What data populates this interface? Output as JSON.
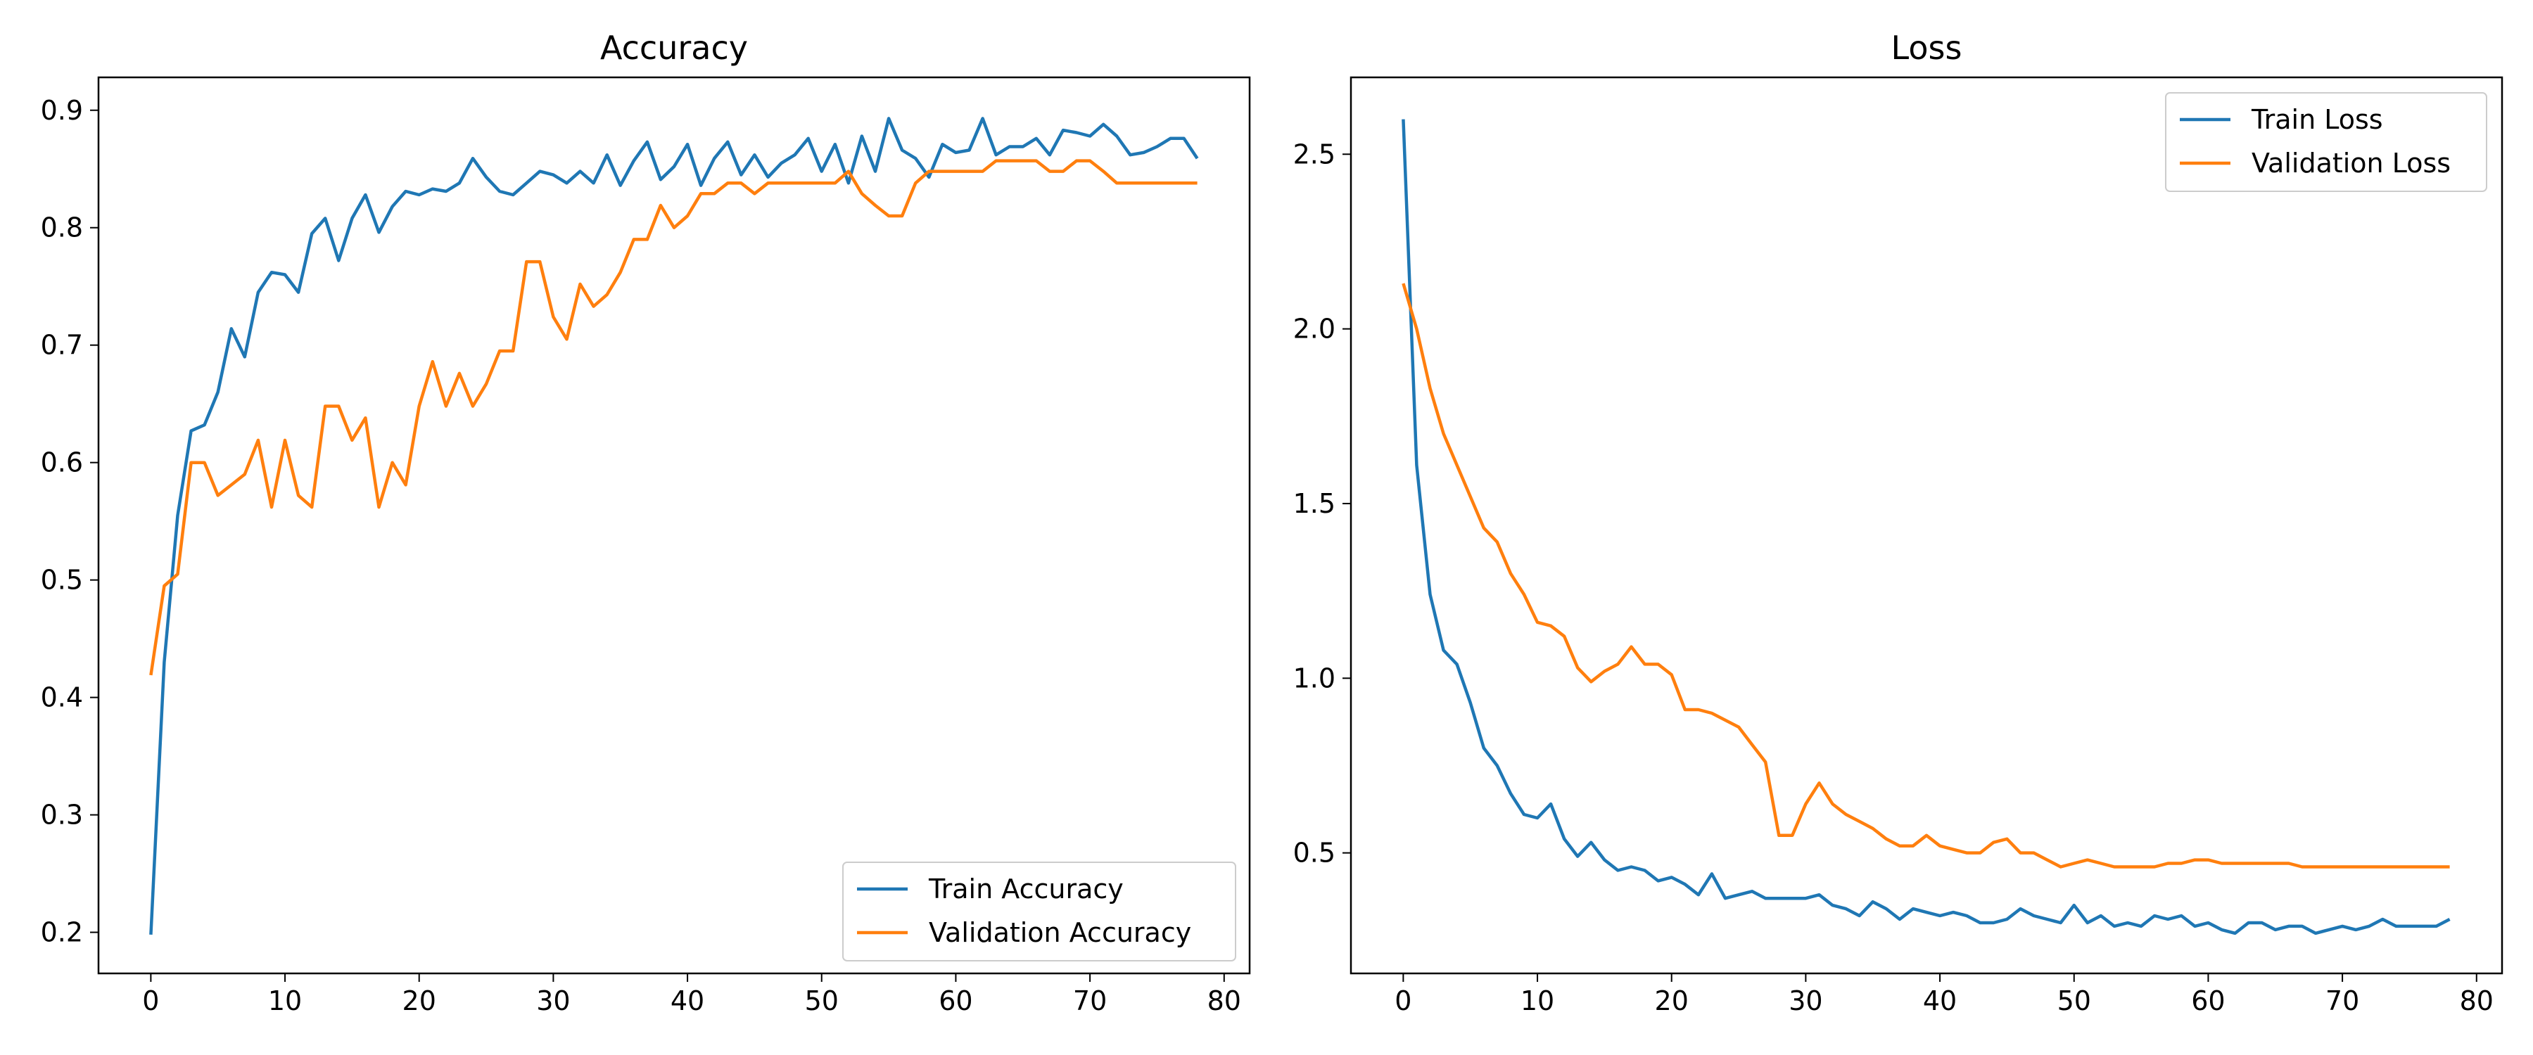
{
  "chart_data": [
    {
      "type": "line",
      "title": "Accuracy",
      "xlabel": "",
      "ylabel": "",
      "xlim": [
        -3.9,
        81.9
      ],
      "ylim": [
        0.165,
        0.928
      ],
      "xticks": [
        0,
        10,
        20,
        30,
        40,
        50,
        60,
        70,
        80
      ],
      "yticks": [
        0.2,
        0.3,
        0.4,
        0.5,
        0.6,
        0.7,
        0.8,
        0.9
      ],
      "grid": false,
      "legend_position": "lower right",
      "series": [
        {
          "name": "Train Accuracy",
          "color": "#1f77b4",
          "values": [
            0.198,
            0.43,
            0.555,
            0.627,
            0.632,
            0.66,
            0.714,
            0.69,
            0.745,
            0.762,
            0.76,
            0.745,
            0.795,
            0.808,
            0.772,
            0.808,
            0.828,
            0.796,
            0.818,
            0.831,
            0.828,
            0.833,
            0.831,
            0.838,
            0.859,
            0.843,
            0.831,
            0.828,
            0.838,
            0.848,
            0.845,
            0.838,
            0.848,
            0.838,
            0.862,
            0.836,
            0.857,
            0.873,
            0.841,
            0.852,
            0.871,
            0.836,
            0.859,
            0.873,
            0.845,
            0.862,
            0.843,
            0.855,
            0.862,
            0.876,
            0.848,
            0.871,
            0.838,
            0.878,
            0.848,
            0.893,
            0.866,
            0.859,
            0.843,
            0.871,
            0.864,
            0.866,
            0.893,
            0.862,
            0.869,
            0.869,
            0.876,
            0.862,
            0.883,
            0.881,
            0.878,
            0.888,
            0.878,
            0.862,
            0.864,
            0.869,
            0.876,
            0.876,
            0.859
          ]
        },
        {
          "name": "Validation Accuracy",
          "color": "#ff7f0e",
          "values": [
            0.419,
            0.495,
            0.505,
            0.6,
            0.6,
            0.572,
            0.581,
            0.59,
            0.619,
            0.562,
            0.619,
            0.572,
            0.562,
            0.648,
            0.648,
            0.619,
            0.638,
            0.562,
            0.6,
            0.581,
            0.648,
            0.686,
            0.648,
            0.676,
            0.648,
            0.667,
            0.695,
            0.695,
            0.771,
            0.771,
            0.724,
            0.705,
            0.752,
            0.733,
            0.743,
            0.762,
            0.79,
            0.79,
            0.819,
            0.8,
            0.81,
            0.829,
            0.829,
            0.838,
            0.838,
            0.829,
            0.838,
            0.838,
            0.838,
            0.838,
            0.838,
            0.838,
            0.848,
            0.829,
            0.819,
            0.81,
            0.81,
            0.838,
            0.848,
            0.848,
            0.848,
            0.848,
            0.848,
            0.857,
            0.857,
            0.857,
            0.857,
            0.848,
            0.848,
            0.857,
            0.857,
            0.848,
            0.838,
            0.838,
            0.838,
            0.838,
            0.838,
            0.838,
            0.838
          ]
        }
      ]
    },
    {
      "type": "line",
      "title": "Loss",
      "xlabel": "",
      "ylabel": "",
      "xlim": [
        -3.9,
        81.9
      ],
      "ylim": [
        0.155,
        2.72
      ],
      "xticks": [
        0,
        10,
        20,
        30,
        40,
        50,
        60,
        70,
        80
      ],
      "yticks": [
        0.5,
        1.0,
        1.5,
        2.0,
        2.5
      ],
      "ytick_labels": [
        "0.5",
        "1.0",
        "1.5",
        "2.0",
        "2.5"
      ],
      "grid": false,
      "legend_position": "upper right",
      "series": [
        {
          "name": "Train Loss",
          "color": "#1f77b4",
          "values": [
            2.6,
            1.61,
            1.24,
            1.08,
            1.04,
            0.93,
            0.8,
            0.75,
            0.67,
            0.61,
            0.6,
            0.64,
            0.54,
            0.49,
            0.53,
            0.48,
            0.45,
            0.46,
            0.45,
            0.42,
            0.43,
            0.41,
            0.38,
            0.44,
            0.37,
            0.38,
            0.39,
            0.37,
            0.37,
            0.37,
            0.37,
            0.38,
            0.35,
            0.34,
            0.32,
            0.36,
            0.34,
            0.31,
            0.34,
            0.33,
            0.32,
            0.33,
            0.32,
            0.3,
            0.3,
            0.31,
            0.34,
            0.32,
            0.31,
            0.3,
            0.35,
            0.3,
            0.32,
            0.29,
            0.3,
            0.29,
            0.32,
            0.31,
            0.32,
            0.29,
            0.3,
            0.28,
            0.27,
            0.3,
            0.3,
            0.28,
            0.29,
            0.29,
            0.27,
            0.28,
            0.29,
            0.28,
            0.29,
            0.31,
            0.29,
            0.29,
            0.29,
            0.29,
            0.31
          ]
        },
        {
          "name": "Validation Loss",
          "color": "#ff7f0e",
          "values": [
            2.13,
            2.0,
            1.83,
            1.7,
            1.61,
            1.52,
            1.43,
            1.39,
            1.3,
            1.24,
            1.16,
            1.15,
            1.12,
            1.03,
            0.99,
            1.02,
            1.04,
            1.09,
            1.04,
            1.04,
            1.01,
            0.91,
            0.91,
            0.9,
            0.88,
            0.86,
            0.81,
            0.76,
            0.55,
            0.55,
            0.64,
            0.7,
            0.64,
            0.61,
            0.59,
            0.57,
            0.54,
            0.52,
            0.52,
            0.55,
            0.52,
            0.51,
            0.5,
            0.5,
            0.53,
            0.54,
            0.5,
            0.5,
            0.48,
            0.46,
            0.47,
            0.48,
            0.47,
            0.46,
            0.46,
            0.46,
            0.46,
            0.47,
            0.47,
            0.48,
            0.48,
            0.47,
            0.47,
            0.47,
            0.47,
            0.47,
            0.47,
            0.46,
            0.46,
            0.46,
            0.46,
            0.46,
            0.46,
            0.46,
            0.46,
            0.46,
            0.46,
            0.46,
            0.46
          ]
        }
      ]
    }
  ]
}
